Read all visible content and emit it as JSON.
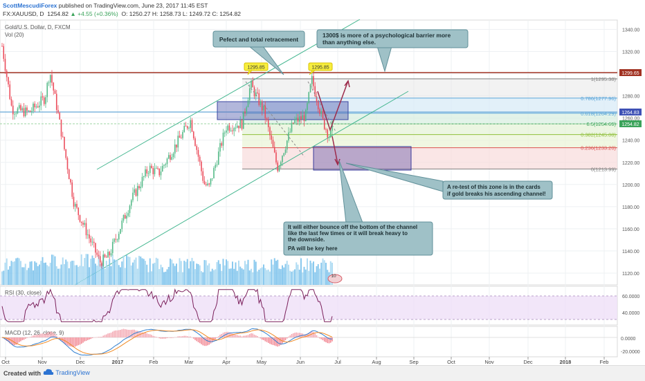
{
  "header": {
    "author": "ScottMescudiForex",
    "published": "published on TradingView.com, June 23, 2017 11:45 EST",
    "symbol": "FX:XAUUSD, D",
    "price": "1254.82",
    "change": "▲ +4.55 (+0.36%)",
    "ohlc": "O: 1250.27  H: 1258.73  L: 1249.72  C: 1254.82"
  },
  "legend": {
    "instrument": "Gold/U.S. Dollar, D, FXCM",
    "volume": "Vol (20)",
    "rsi": "RSI (30, close)",
    "macd": "MACD (12, 26, close, 9)"
  },
  "axis": {
    "price_ticks": [
      "1340.00",
      "1320.00",
      "1300.00",
      "1280.00",
      "1260.00",
      "1240.00",
      "1220.00",
      "1200.00",
      "1180.00",
      "1160.00",
      "1140.00",
      "1120.00"
    ],
    "rsi_ticks": [
      "60.0000",
      "40.0000"
    ],
    "macd_ticks": [
      "0.0000",
      "-20.0000"
    ],
    "time_ticks": [
      "Oct",
      "Nov",
      "Dec",
      "2017",
      "Feb",
      "Mar",
      "Apr",
      "May",
      "Jun",
      "Jul",
      "Aug",
      "Sep",
      "Oct",
      "Nov",
      "Dec",
      "2018",
      "Feb"
    ],
    "badges": {
      "resistance": "1299.65",
      "blue_line": "1264.83",
      "last_price": "1254.82"
    }
  },
  "fib_levels": [
    {
      "label": "1(1295.38)",
      "color": "#808080"
    },
    {
      "label": "0.786(1277.96)",
      "color": "#5aa5d9"
    },
    {
      "label": "0.618(1264.29)",
      "color": "#5aa5d9"
    },
    {
      "label": "0.5(1254.69)",
      "color": "#3aa35a"
    },
    {
      "label": "0.382(1245.08)",
      "color": "#8fbf3a"
    },
    {
      "label": "0.236(1233.20)",
      "color": "#d9534f"
    },
    {
      "label": "0(1213.99)",
      "color": "#808080"
    }
  ],
  "annotations": {
    "retracement": "Pefect and total retracement",
    "barrier": "1300$ is more of a psychological barrier more than anything else.",
    "retest": "A re-test of this zone is in the cards if gold breaks his ascending channel!",
    "bounce": "It will either bounce off the bottom of the channel like the last few times or it will break heavy to the downside.",
    "pa": "PA will be key here",
    "top1": "1295.85",
    "top2": "1295.85",
    "vol_marker": "10"
  },
  "footer": {
    "created": "Created with",
    "brand": "TradingView"
  },
  "chart_data": {
    "type": "candlestick",
    "instrument": "Gold/U.S. Dollar, D, FXCM",
    "ylim": [
      1110,
      1348
    ],
    "close_path": [
      [
        "2016-09-26",
        1325
      ],
      [
        "2016-10-04",
        1268
      ],
      [
        "2016-10-18",
        1265
      ],
      [
        "2016-10-31",
        1278
      ],
      [
        "2016-11-04",
        1302
      ],
      [
        "2016-11-10",
        1268
      ],
      [
        "2016-11-24",
        1182
      ],
      [
        "2016-12-15",
        1130
      ],
      [
        "2016-12-22",
        1135
      ],
      [
        "2017-01-10",
        1187
      ],
      [
        "2017-01-24",
        1215
      ],
      [
        "2017-02-01",
        1210
      ],
      [
        "2017-02-27",
        1258
      ],
      [
        "2017-03-10",
        1201
      ],
      [
        "2017-03-14",
        1197
      ],
      [
        "2017-03-28",
        1252
      ],
      [
        "2017-04-10",
        1255
      ],
      [
        "2017-04-17",
        1290
      ],
      [
        "2017-04-28",
        1266
      ],
      [
        "2017-05-09",
        1215
      ],
      [
        "2017-05-22",
        1256
      ],
      [
        "2017-06-01",
        1262
      ],
      [
        "2017-06-06",
        1295
      ],
      [
        "2017-06-15",
        1257
      ],
      [
        "2017-06-21",
        1242
      ],
      [
        "2017-06-23",
        1254.82
      ]
    ],
    "fib_retracement": {
      "from": 1213.99,
      "to": 1295.38,
      "levels": [
        0,
        0.236,
        0.382,
        0.5,
        0.618,
        0.786,
        1
      ]
    },
    "horizontal_lines": [
      1299.65,
      1264.83
    ],
    "zones": [
      {
        "low": 1258,
        "high": 1273
      },
      {
        "low": 1214,
        "high": 1234
      }
    ],
    "rsi": {
      "label": "RSI (30, close)",
      "ylim": [
        20,
        80
      ]
    },
    "macd": {
      "label": "MACD (12, 26, close, 9)",
      "ylim": [
        -30,
        15
      ]
    }
  }
}
